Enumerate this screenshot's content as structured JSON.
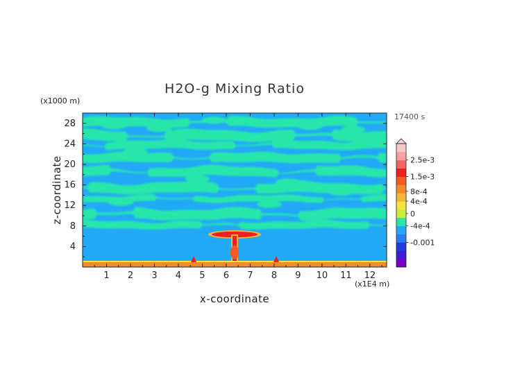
{
  "chart_data": {
    "type": "heatmap",
    "title": "H2O-g Mixing Ratio",
    "xlabel": "x-coordinate",
    "ylabel": "z-coordinate",
    "x_unit": "(x1E4 m)",
    "y_unit": "(x1000 m)",
    "time_label": "17400 s",
    "xlim": [
      0,
      12.7
    ],
    "ylim": [
      0,
      30
    ],
    "x_ticks": [
      "1",
      "2",
      "3",
      "4",
      "5",
      "6",
      "7",
      "8",
      "9",
      "10",
      "11",
      "12"
    ],
    "y_ticks": [
      "4",
      "8",
      "12",
      "16",
      "20",
      "24",
      "28"
    ],
    "colorbar_labels": [
      "2.5e-3",
      "1.5e-3",
      "8e-4",
      "4e-4",
      "0",
      "-4e-4",
      "-0.001"
    ],
    "colorbar_colors": [
      "#7a00c8",
      "#3a1fd6",
      "#1f3ce0",
      "#2a7ef0",
      "#22aaf7",
      "#28e6aa",
      "#c8ee3c",
      "#f5e23a",
      "#f5b43a",
      "#f08a2a",
      "#f25a22",
      "#f02020",
      "#f46464",
      "#f7a0a0",
      "#f7c8c8"
    ],
    "grid": false,
    "legend": "right colorbar",
    "features": [
      "near-surface orange/red moisture layer along bottom",
      "plume of high mixing ratio centered near x=6.4 rising to about z=6-7 with anvil spreading from x=5.8 to 7.6",
      "small red spikes at surface near x=4.6 and x=8.2",
      "alternating blue and green horizontal bands above z=8"
    ]
  }
}
